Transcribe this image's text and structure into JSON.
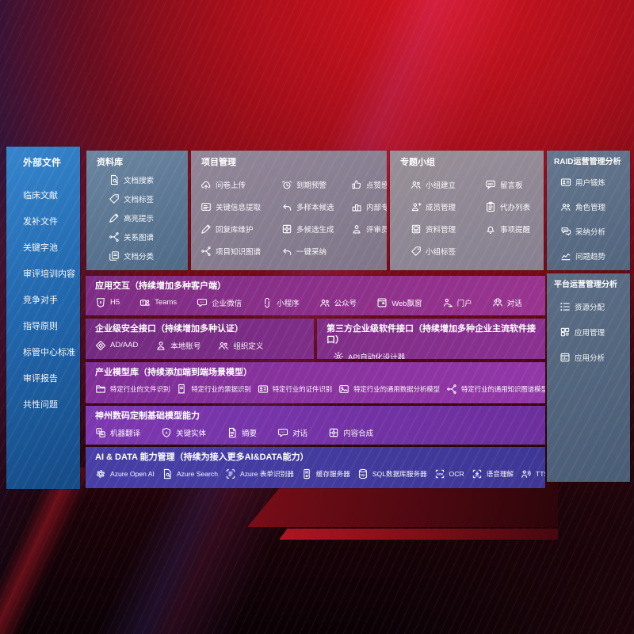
{
  "colors": {
    "background_red": "#c01420",
    "background_dark_navy": "#221640",
    "sidebar_blue": "#2a72b5",
    "panel_slate": "#5a7591",
    "panel_gray": "#8a8292",
    "band_magenta": "#99348f",
    "band_purple": "#9237a7",
    "band_violet": "#7636ab",
    "band_indigo": "#433a9e"
  },
  "sidebar": {
    "title": "外部文件",
    "items": [
      {
        "label": "临床文献"
      },
      {
        "label": "发补文件"
      },
      {
        "label": "关键字池"
      },
      {
        "label": "审评培训内容"
      },
      {
        "label": "竞争对手"
      },
      {
        "label": "指导原则"
      },
      {
        "label": "标管中心标准"
      },
      {
        "label": "审评报告"
      },
      {
        "label": "共性问题"
      }
    ]
  },
  "panels": {
    "library": {
      "title": "资料库",
      "items": [
        {
          "icon": "doc-search",
          "label": "文档搜索"
        },
        {
          "icon": "tag",
          "label": "文档标签"
        },
        {
          "icon": "pencil",
          "label": "高亮提示"
        },
        {
          "icon": "graph",
          "label": "关系图谱"
        },
        {
          "icon": "doc-copy",
          "label": "文档分类"
        }
      ]
    },
    "project": {
      "title": "项目管理",
      "items": [
        {
          "icon": "cloud-upload",
          "label": "问卷上传"
        },
        {
          "icon": "alarm",
          "label": "到期预警"
        },
        {
          "icon": "thumbs-up",
          "label": "点赞感谢"
        },
        {
          "icon": "card-lines",
          "label": "关键信息提取"
        },
        {
          "icon": "reply-arrow",
          "label": "多样本候选"
        },
        {
          "icon": "podium",
          "label": "内部专家排名"
        },
        {
          "icon": "pencil",
          "label": "回复库维护"
        },
        {
          "icon": "puzzle",
          "label": "多候选生成"
        },
        {
          "icon": "person",
          "label": "评审员画像"
        },
        {
          "icon": "graph",
          "label": "项目知识图谱"
        },
        {
          "icon": "reply-arrow",
          "label": "一键采纳"
        }
      ]
    },
    "groups": {
      "title": "专题小组",
      "items": [
        {
          "icon": "users",
          "label": "小组建立"
        },
        {
          "icon": "bbs-bubble",
          "label": "留言板"
        },
        {
          "icon": "person-add",
          "label": "成员管理"
        },
        {
          "icon": "clipboard",
          "label": "代办列表"
        },
        {
          "icon": "album",
          "label": "资料管理"
        },
        {
          "icon": "bell",
          "label": "事项提醒"
        },
        {
          "icon": "tag",
          "label": "小组标签"
        }
      ]
    },
    "raid": {
      "title": "RAID运营管理分析",
      "items": [
        {
          "icon": "id-card",
          "label": "用户锻炼"
        },
        {
          "icon": "users",
          "label": "角色管理"
        },
        {
          "icon": "qa-bubbles",
          "label": "采纳分析"
        },
        {
          "icon": "trend-chart",
          "label": "问题趋势"
        }
      ]
    },
    "platform": {
      "title": "平台运营管理分析",
      "items": [
        {
          "icon": "list",
          "label": "资源分配"
        },
        {
          "icon": "grid",
          "label": "应用管理"
        },
        {
          "icon": "window-chart",
          "label": "应用分析"
        }
      ]
    }
  },
  "bands": {
    "interaction": {
      "title": "应用交互（持续增加多种客户端）",
      "items": [
        {
          "icon": "h5-shield",
          "label": "H5"
        },
        {
          "icon": "teams",
          "label": "Teams"
        },
        {
          "icon": "chat-bubble",
          "label": "企业微信"
        },
        {
          "icon": "mini-program",
          "label": "小程序"
        },
        {
          "icon": "users",
          "label": "公众号"
        },
        {
          "icon": "web-window",
          "label": "Web飘窗"
        },
        {
          "icon": "person-desk",
          "label": "门户"
        },
        {
          "icon": "people-chat",
          "label": "对话"
        }
      ]
    },
    "security": {
      "title": "企业级安全接口（持续增加多种认证）",
      "items": [
        {
          "icon": "diamond",
          "label": "AD/AAD"
        },
        {
          "icon": "person",
          "label": "本地账号"
        },
        {
          "icon": "users",
          "label": "组织定义"
        }
      ]
    },
    "thirdparty": {
      "title": "第三方企业级软件接口（持续增加多种企业主流软件接口）",
      "items": [
        {
          "icon": "gear",
          "label": "API自动化设计器"
        }
      ]
    },
    "industry": {
      "title": "产业模型库（持续添加端到端场景模型）",
      "items": [
        {
          "icon": "folder",
          "label": "特定行业的文件识别"
        },
        {
          "icon": "receipt",
          "label": "特定行业的票据识别"
        },
        {
          "icon": "id-card",
          "label": "特定行业的证件识别"
        },
        {
          "icon": "image",
          "label": "特定行业的通用数据分析模型"
        },
        {
          "icon": "graph",
          "label": "特定行业的通用知识图谱模型"
        }
      ]
    },
    "base_models": {
      "title": "神州数码定制基础模型能力",
      "items": [
        {
          "icon": "translate",
          "label": "机器翻译"
        },
        {
          "icon": "shield-a",
          "label": "关键实体"
        },
        {
          "icon": "doc-lines",
          "label": "摘要"
        },
        {
          "icon": "chat-bubble",
          "label": "对话"
        },
        {
          "icon": "puzzle",
          "label": "内容合成"
        }
      ]
    },
    "ai_data": {
      "title": "AI & DATA 能力管理（持续为接入更多AI&DATA能力）",
      "items": [
        {
          "icon": "openai",
          "label": "Azure Open AI"
        },
        {
          "icon": "doc-search",
          "label": "Azure Search"
        },
        {
          "icon": "form-brackets",
          "label": "Azure 表单识别器"
        },
        {
          "icon": "server",
          "label": "缓存服务器"
        },
        {
          "icon": "sql-db",
          "label": "SQL数据库服务器"
        },
        {
          "icon": "ocr-brackets",
          "label": "OCR"
        },
        {
          "icon": "speech-brackets",
          "label": "语音理解"
        },
        {
          "icon": "person-sound",
          "label": "TTS"
        }
      ]
    }
  }
}
